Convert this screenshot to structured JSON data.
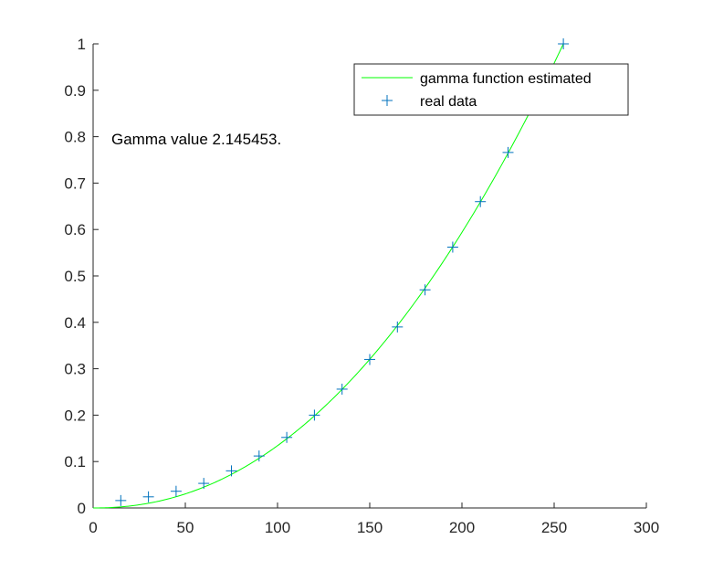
{
  "chart_data": {
    "type": "line",
    "title": "",
    "xlabel": "",
    "ylabel": "",
    "xlim": [
      0,
      300
    ],
    "ylim": [
      0,
      1
    ],
    "xticks": [
      0,
      50,
      100,
      150,
      200,
      250,
      300
    ],
    "yticks": [
      0,
      0.1,
      0.2,
      0.3,
      0.4,
      0.5,
      0.6,
      0.7,
      0.8,
      0.9,
      1
    ],
    "xtick_labels": [
      "0",
      "50",
      "100",
      "150",
      "200",
      "250",
      "300"
    ],
    "ytick_labels": [
      "0",
      "0.1",
      "0.2",
      "0.3",
      "0.4",
      "0.5",
      "0.6",
      "0.7",
      "0.8",
      "0.9",
      "1"
    ],
    "grid": false,
    "legend_position": "top-right",
    "annotation": "Gamma value 2.145453.",
    "series": [
      {
        "name": "gamma function estimated",
        "kind": "line",
        "color": "#00ff00",
        "gamma": 2.145453,
        "x_max": 255,
        "x_range": [
          0,
          255
        ]
      },
      {
        "name": "real data",
        "kind": "markers",
        "marker": "+",
        "color": "#0072bd",
        "x": [
          15,
          30,
          45,
          60,
          75,
          90,
          105,
          120,
          135,
          150,
          165,
          180,
          195,
          210,
          225,
          255
        ],
        "y": [
          0.016,
          0.024,
          0.036,
          0.053,
          0.08,
          0.112,
          0.152,
          0.2,
          0.256,
          0.32,
          0.39,
          0.47,
          0.562,
          0.66,
          0.766,
          1.0
        ]
      }
    ]
  }
}
